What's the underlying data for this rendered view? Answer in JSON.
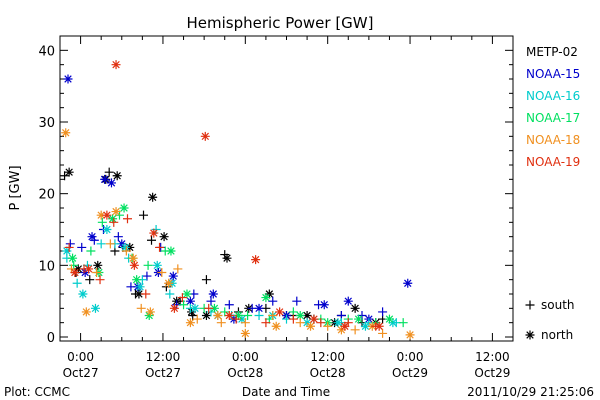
{
  "chart_data": {
    "type": "scatter",
    "title": "Hemispheric Power [GW]",
    "xlabel": "Date and Time",
    "ylabel": "P [GW]",
    "ylim": [
      0,
      42
    ],
    "y_ticks": [
      0,
      10,
      20,
      30,
      40
    ],
    "x_ticks": [
      {
        "t": "2011-10-27T00:00",
        "time": "0:00",
        "date": "Oct27"
      },
      {
        "t": "2011-10-27T12:00",
        "time": "12:00",
        "date": "Oct27"
      },
      {
        "t": "2011-10-28T00:00",
        "time": "0:00",
        "date": "Oct28"
      },
      {
        "t": "2011-10-28T12:00",
        "time": "12:00",
        "date": "Oct28"
      },
      {
        "t": "2011-10-29T00:00",
        "time": "0:00",
        "date": "Oct29"
      },
      {
        "t": "2011-10-29T12:00",
        "time": "12:00",
        "date": "Oct29"
      }
    ],
    "xlim": [
      "2011-10-26T21:00",
      "2011-10-29T15:00"
    ],
    "legend_placement": "right",
    "marker_legend": [
      {
        "symbol": "+",
        "label": "south"
      },
      {
        "symbol": "*",
        "label": "north"
      }
    ],
    "series": [
      {
        "name": "METP-02",
        "color": "#000000",
        "south": [
          [
            "2011-10-26T21:40",
            22.5
          ],
          [
            "2011-10-26T23:20",
            9.0
          ],
          [
            "2011-10-27T01:20",
            8.0
          ],
          [
            "2011-10-27T04:10",
            23.0
          ],
          [
            "2011-10-27T05:00",
            12.0
          ],
          [
            "2011-10-27T06:10",
            12.5
          ],
          [
            "2011-10-27T08:00",
            6.0
          ],
          [
            "2011-10-27T09:10",
            17.0
          ],
          [
            "2011-10-27T10:20",
            13.5
          ],
          [
            "2011-10-27T12:30",
            7.0
          ],
          [
            "2011-10-27T14:30",
            5.0
          ],
          [
            "2011-10-27T16:20",
            3.0
          ],
          [
            "2011-10-27T18:20",
            8.0
          ],
          [
            "2011-10-27T21:00",
            11.5
          ],
          [
            "2011-10-27T23:00",
            3.5
          ],
          [
            "2011-10-28T03:00",
            4.0
          ],
          [
            "2011-10-28T07:00",
            3.0
          ],
          [
            "2011-10-28T10:00",
            2.5
          ],
          [
            "2011-10-28T14:00",
            3.0
          ],
          [
            "2011-10-28T17:00",
            2.0
          ],
          [
            "2011-10-28T20:00",
            2.5
          ]
        ],
        "north": [
          [
            "2011-10-26T22:20",
            23.0
          ],
          [
            "2011-10-26T23:40",
            9.5
          ],
          [
            "2011-10-27T02:30",
            10.0
          ],
          [
            "2011-10-27T03:40",
            22.0
          ],
          [
            "2011-10-27T05:20",
            22.5
          ],
          [
            "2011-10-27T07:10",
            12.5
          ],
          [
            "2011-10-27T08:30",
            6.0
          ],
          [
            "2011-10-27T10:30",
            19.5
          ],
          [
            "2011-10-27T12:10",
            14.0
          ],
          [
            "2011-10-27T14:00",
            5.0
          ],
          [
            "2011-10-27T16:10",
            3.5
          ],
          [
            "2011-10-27T18:20",
            3.0
          ],
          [
            "2011-10-27T21:20",
            11.0
          ],
          [
            "2011-10-28T00:30",
            4.0
          ],
          [
            "2011-10-28T03:30",
            6.0
          ],
          [
            "2011-10-28T06:00",
            3.0
          ],
          [
            "2011-10-28T09:00",
            3.0
          ],
          [
            "2011-10-28T13:00",
            2.0
          ],
          [
            "2011-10-28T16:00",
            4.0
          ],
          [
            "2011-10-28T19:00",
            2.0
          ]
        ]
      },
      {
        "name": "NOAA-15",
        "color": "#0000cc",
        "south": [
          [
            "2011-10-26T22:30",
            13.0
          ],
          [
            "2011-10-27T00:10",
            12.5
          ],
          [
            "2011-10-27T02:00",
            13.5
          ],
          [
            "2011-10-27T03:20",
            15.0
          ],
          [
            "2011-10-27T05:30",
            14.0
          ],
          [
            "2011-10-27T07:20",
            7.0
          ],
          [
            "2011-10-27T09:40",
            8.5
          ],
          [
            "2011-10-27T11:40",
            12.5
          ],
          [
            "2011-10-27T14:00",
            4.5
          ],
          [
            "2011-10-27T16:30",
            6.0
          ],
          [
            "2011-10-27T19:00",
            5.0
          ],
          [
            "2011-10-27T21:40",
            4.5
          ],
          [
            "2011-10-28T01:00",
            4.0
          ],
          [
            "2011-10-28T04:00",
            5.0
          ],
          [
            "2011-10-28T07:30",
            5.0
          ],
          [
            "2011-10-28T10:40",
            4.5
          ],
          [
            "2011-10-28T14:00",
            3.0
          ],
          [
            "2011-10-28T17:00",
            3.0
          ],
          [
            "2011-10-28T20:00",
            3.5
          ]
        ],
        "north": [
          [
            "2011-10-26T22:10",
            36.0
          ],
          [
            "2011-10-27T00:40",
            9.0
          ],
          [
            "2011-10-27T01:40",
            14.0
          ],
          [
            "2011-10-27T03:30",
            22.0
          ],
          [
            "2011-10-27T04:30",
            21.5
          ],
          [
            "2011-10-27T06:00",
            13.0
          ],
          [
            "2011-10-27T08:20",
            7.0
          ],
          [
            "2011-10-27T11:20",
            9.0
          ],
          [
            "2011-10-27T13:30",
            8.5
          ],
          [
            "2011-10-27T16:00",
            5.0
          ],
          [
            "2011-10-27T19:20",
            6.0
          ],
          [
            "2011-10-27T22:20",
            2.5
          ],
          [
            "2011-10-28T02:00",
            4.0
          ],
          [
            "2011-10-28T06:00",
            3.0
          ],
          [
            "2011-10-28T11:30",
            4.5
          ],
          [
            "2011-10-28T15:00",
            5.0
          ],
          [
            "2011-10-28T18:00",
            2.5
          ],
          [
            "2011-10-28T23:40",
            7.5
          ]
        ]
      },
      {
        "name": "NOAA-16",
        "color": "#00cccc",
        "south": [
          [
            "2011-10-26T22:00",
            11.0
          ],
          [
            "2011-10-26T23:30",
            7.5
          ],
          [
            "2011-10-27T01:00",
            10.0
          ],
          [
            "2011-10-27T03:00",
            13.0
          ],
          [
            "2011-10-27T05:00",
            13.0
          ],
          [
            "2011-10-27T07:00",
            11.0
          ],
          [
            "2011-10-27T09:00",
            8.0
          ],
          [
            "2011-10-27T11:00",
            15.0
          ],
          [
            "2011-10-27T13:00",
            6.0
          ],
          [
            "2011-10-27T16:00",
            4.0
          ],
          [
            "2011-10-27T19:00",
            3.5
          ],
          [
            "2011-10-27T22:00",
            3.0
          ],
          [
            "2011-10-28T02:00",
            3.0
          ],
          [
            "2011-10-28T06:00",
            2.5
          ],
          [
            "2011-10-28T10:00",
            2.5
          ],
          [
            "2011-10-28T14:00",
            2.0
          ],
          [
            "2011-10-28T18:00",
            2.0
          ],
          [
            "2011-10-28T22:00",
            2.0
          ]
        ],
        "north": [
          [
            "2011-10-26T22:00",
            12.0
          ],
          [
            "2011-10-27T00:20",
            6.0
          ],
          [
            "2011-10-27T02:10",
            4.0
          ],
          [
            "2011-10-27T03:50",
            15.0
          ],
          [
            "2011-10-27T06:30",
            12.5
          ],
          [
            "2011-10-27T08:40",
            7.0
          ],
          [
            "2011-10-27T11:10",
            10.0
          ],
          [
            "2011-10-27T13:20",
            7.5
          ],
          [
            "2011-10-27T16:40",
            4.0
          ],
          [
            "2011-10-27T20:00",
            3.0
          ],
          [
            "2011-10-27T23:30",
            2.5
          ],
          [
            "2011-10-28T04:00",
            3.0
          ],
          [
            "2011-10-28T09:00",
            2.0
          ],
          [
            "2011-10-28T13:30",
            2.0
          ],
          [
            "2011-10-28T17:30",
            1.5
          ],
          [
            "2011-10-28T21:30",
            2.0
          ]
        ]
      },
      {
        "name": "NOAA-17",
        "color": "#00e060",
        "south": [
          [
            "2011-10-26T23:00",
            10.0
          ],
          [
            "2011-10-27T01:30",
            12.0
          ],
          [
            "2011-10-27T03:10",
            16.0
          ],
          [
            "2011-10-27T05:40",
            17.0
          ],
          [
            "2011-10-27T07:30",
            11.0
          ],
          [
            "2011-10-27T09:50",
            10.0
          ],
          [
            "2011-10-27T12:20",
            12.0
          ],
          [
            "2011-10-27T15:00",
            4.5
          ],
          [
            "2011-10-27T18:00",
            4.0
          ],
          [
            "2011-10-27T21:00",
            3.5
          ],
          [
            "2011-10-28T00:20",
            3.0
          ],
          [
            "2011-10-28T03:30",
            2.5
          ],
          [
            "2011-10-28T07:00",
            3.5
          ],
          [
            "2011-10-28T11:00",
            2.5
          ],
          [
            "2011-10-28T15:00",
            2.5
          ],
          [
            "2011-10-28T19:00",
            2.0
          ],
          [
            "2011-10-28T23:00",
            2.0
          ]
        ],
        "north": [
          [
            "2011-10-26T22:50",
            11.0
          ],
          [
            "2011-10-27T02:40",
            9.0
          ],
          [
            "2011-10-27T04:40",
            16.5
          ],
          [
            "2011-10-27T06:20",
            18.0
          ],
          [
            "2011-10-27T08:10",
            8.0
          ],
          [
            "2011-10-27T10:00",
            3.0
          ],
          [
            "2011-10-27T13:10",
            12.0
          ],
          [
            "2011-10-27T15:30",
            6.0
          ],
          [
            "2011-10-27T19:30",
            4.0
          ],
          [
            "2011-10-27T23:00",
            3.0
          ],
          [
            "2011-10-28T03:00",
            5.5
          ],
          [
            "2011-10-28T08:00",
            3.0
          ],
          [
            "2011-10-28T12:00",
            2.0
          ],
          [
            "2011-10-28T16:30",
            2.5
          ],
          [
            "2011-10-28T21:00",
            2.5
          ]
        ]
      },
      {
        "name": "NOAA-18",
        "color": "#f09020",
        "south": [
          [
            "2011-10-26T22:40",
            9.5
          ],
          [
            "2011-10-27T02:20",
            9.0
          ],
          [
            "2011-10-27T04:20",
            13.0
          ],
          [
            "2011-10-27T06:40",
            12.0
          ],
          [
            "2011-10-27T08:50",
            4.0
          ],
          [
            "2011-10-27T11:50",
            9.0
          ],
          [
            "2011-10-27T14:10",
            9.5
          ],
          [
            "2011-10-27T17:00",
            2.5
          ],
          [
            "2011-10-27T20:30",
            2.0
          ],
          [
            "2011-10-28T00:00",
            2.0
          ],
          [
            "2011-10-28T04:00",
            3.0
          ],
          [
            "2011-10-28T08:00",
            2.0
          ],
          [
            "2011-10-28T12:00",
            1.5
          ],
          [
            "2011-10-28T16:00",
            1.0
          ],
          [
            "2011-10-28T20:00",
            0.5
          ]
        ],
        "north": [
          [
            "2011-10-26T21:50",
            28.5
          ],
          [
            "2011-10-27T00:50",
            3.5
          ],
          [
            "2011-10-27T03:00",
            17.0
          ],
          [
            "2011-10-27T05:10",
            17.5
          ],
          [
            "2011-10-27T07:40",
            11.0
          ],
          [
            "2011-10-27T10:10",
            3.5
          ],
          [
            "2011-10-27T12:50",
            7.5
          ],
          [
            "2011-10-27T16:00",
            2.0
          ],
          [
            "2011-10-27T20:00",
            3.0
          ],
          [
            "2011-10-28T00:00",
            0.5
          ],
          [
            "2011-10-28T04:30",
            1.5
          ],
          [
            "2011-10-28T09:30",
            1.5
          ],
          [
            "2011-10-28T14:00",
            1.0
          ],
          [
            "2011-10-28T18:30",
            1.5
          ],
          [
            "2011-10-29T00:00",
            0.3
          ]
        ]
      },
      {
        "name": "NOAA-19",
        "color": "#e03010",
        "south": [
          [
            "2011-10-26T22:20",
            12.5
          ],
          [
            "2011-10-27T00:30",
            9.5
          ],
          [
            "2011-10-27T02:50",
            8.0
          ],
          [
            "2011-10-27T04:50",
            16.0
          ],
          [
            "2011-10-27T06:50",
            16.5
          ],
          [
            "2011-10-27T09:30",
            6.0
          ],
          [
            "2011-10-27T11:30",
            12.5
          ],
          [
            "2011-10-27T14:50",
            5.5
          ],
          [
            "2011-10-27T18:40",
            4.0
          ],
          [
            "2011-10-27T22:40",
            2.5
          ],
          [
            "2011-10-28T03:00",
            2.0
          ],
          [
            "2011-10-28T07:00",
            2.5
          ],
          [
            "2011-10-28T11:00",
            2.0
          ],
          [
            "2011-10-28T15:00",
            2.0
          ],
          [
            "2011-10-28T19:00",
            1.5
          ]
        ],
        "north": [
          [
            "2011-10-26T23:10",
            9.0
          ],
          [
            "2011-10-27T01:10",
            9.5
          ],
          [
            "2011-10-27T03:50",
            17.0
          ],
          [
            "2011-10-27T05:10",
            38.0
          ],
          [
            "2011-10-27T07:50",
            10.0
          ],
          [
            "2011-10-27T10:40",
            14.5
          ],
          [
            "2011-10-27T13:40",
            4.0
          ],
          [
            "2011-10-27T18:10",
            28.0
          ],
          [
            "2011-10-27T21:40",
            3.0
          ],
          [
            "2011-10-28T01:30",
            10.8
          ],
          [
            "2011-10-28T05:00",
            3.5
          ],
          [
            "2011-10-28T10:00",
            2.5
          ],
          [
            "2011-10-28T14:30",
            1.5
          ],
          [
            "2011-10-28T19:30",
            1.5
          ]
        ]
      }
    ]
  },
  "footer": {
    "left": "Plot: CCMC",
    "right": "2011/10/29 21:25:06"
  }
}
